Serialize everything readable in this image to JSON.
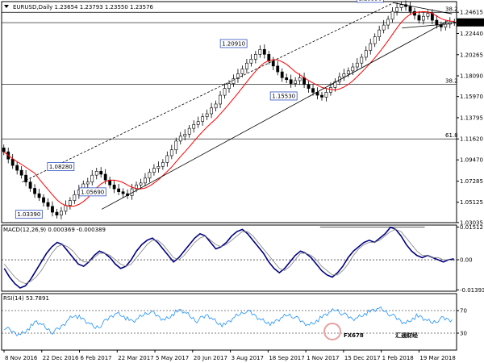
{
  "header": {
    "symbol_line": "EURUSD,Daily  1.23654 1.23793 1.23550 1.23576"
  },
  "chart_data": [
    {
      "type": "candlestick",
      "panel": "price",
      "ylim": [
        1.0303,
        1.2488
      ],
      "yticks": [
        "1.24615",
        "1.22440",
        "1.20265",
        "1.18090",
        "1.15970",
        "1.13795",
        "1.11620",
        "1.09470",
        "1.07285",
        "1.05125",
        "1.03035"
      ],
      "current_price": {
        "label": "1.23576",
        "value": 1.23576,
        "color": "#000000"
      },
      "horizontal_levels": [
        {
          "value": 1.2461,
          "label": "38.2",
          "color": "#000000"
        },
        {
          "value": 1.2355,
          "label": "",
          "color": "#000000"
        },
        {
          "value": 1.1722,
          "label": "38.2",
          "color": "#000000"
        },
        {
          "value": 1.1162,
          "label": "61.8",
          "color": "#000000"
        }
      ],
      "annotations": [
        {
          "label": "1.25550",
          "x": 0.81,
          "y": 1.2555
        },
        {
          "label": "1.20910",
          "x": 0.51,
          "y": 1.2091
        },
        {
          "label": "1.15530",
          "x": 0.62,
          "y": 1.1553
        },
        {
          "label": "1.08280",
          "x": 0.13,
          "y": 1.0828
        },
        {
          "label": "1.05690",
          "x": 0.2,
          "y": 1.0569
        },
        {
          "label": "1.03390",
          "x": 0.06,
          "y": 1.0339
        }
      ],
      "close": [
        1.103,
        1.0955,
        1.089,
        1.084,
        1.079,
        1.072,
        1.0655,
        1.06,
        1.056,
        1.051,
        1.047,
        1.041,
        1.038,
        1.042,
        1.048,
        1.053,
        1.059,
        1.064,
        1.07,
        1.072,
        1.079,
        1.083,
        1.08,
        1.074,
        1.069,
        1.065,
        1.062,
        1.06,
        1.058,
        1.065,
        1.069,
        1.071,
        1.076,
        1.082,
        1.086,
        1.088,
        1.092,
        1.099,
        1.105,
        1.114,
        1.119,
        1.121,
        1.127,
        1.131,
        1.134,
        1.139,
        1.142,
        1.148,
        1.152,
        1.161,
        1.168,
        1.173,
        1.178,
        1.183,
        1.188,
        1.194,
        1.198,
        1.203,
        1.208,
        1.203,
        1.196,
        1.191,
        1.185,
        1.179,
        1.177,
        1.173,
        1.176,
        1.179,
        1.172,
        1.168,
        1.164,
        1.161,
        1.159,
        1.164,
        1.169,
        1.175,
        1.18,
        1.183,
        1.186,
        1.19,
        1.194,
        1.2,
        1.207,
        1.214,
        1.221,
        1.228,
        1.233,
        1.239,
        1.247,
        1.251,
        1.254,
        1.252,
        1.247,
        1.243,
        1.238,
        1.242,
        1.245,
        1.238,
        1.233,
        1.231,
        1.234,
        1.236,
        1.2358
      ],
      "trendlines": [
        {
          "from": [
            0.045,
            1.072
          ],
          "to": [
            0.86,
            1.2555
          ],
          "style": "dashed"
        },
        {
          "from": [
            0.22,
            1.044
          ],
          "to": [
            0.98,
            1.237
          ],
          "style": "solid"
        },
        {
          "from": [
            0.86,
            1.256
          ],
          "to": [
            0.99,
            1.2445
          ],
          "style": "solid"
        },
        {
          "from": [
            0.88,
            1.23
          ],
          "to": [
            0.99,
            1.2345
          ],
          "style": "solid"
        }
      ],
      "ma_color": "#ff0000",
      "candle_color": "#000000"
    },
    {
      "type": "line",
      "panel": "macd",
      "title": "MACD(12,26,9) 0.000369 -0.000389",
      "yticks": [
        "0.01512",
        "0.00",
        "-0.01393"
      ],
      "ylim": [
        -0.0145,
        0.016
      ],
      "series": [
        {
          "name": "MACD",
          "color": "#000080",
          "values": [
            -0.004,
            -0.008,
            -0.011,
            -0.013,
            -0.012,
            -0.009,
            -0.005,
            -0.001,
            0.003,
            0.006,
            0.008,
            0.007,
            0.004,
            0.001,
            -0.002,
            -0.003,
            -0.001,
            0.002,
            0.004,
            0.003,
            0.001,
            -0.002,
            -0.004,
            -0.003,
            0.0,
            0.004,
            0.007,
            0.009,
            0.01,
            0.008,
            0.005,
            0.002,
            -0.001,
            0.001,
            0.004,
            0.007,
            0.01,
            0.012,
            0.011,
            0.008,
            0.005,
            0.006,
            0.008,
            0.011,
            0.013,
            0.014,
            0.012,
            0.009,
            0.006,
            0.003,
            -0.001,
            -0.004,
            -0.006,
            -0.004,
            -0.001,
            0.002,
            0.004,
            0.003,
            0.001,
            -0.002,
            -0.005,
            -0.007,
            -0.008,
            -0.006,
            -0.003,
            0.001,
            0.004,
            0.006,
            0.008,
            0.009,
            0.008,
            0.01,
            0.012,
            0.015,
            0.014,
            0.011,
            0.007,
            0.004,
            0.002,
            0.001,
            0.002,
            0.001,
            0.0,
            -0.001,
            0.0,
            0.0004
          ]
        },
        {
          "name": "Signal",
          "color": "#808080",
          "values": [
            -0.002,
            -0.005,
            -0.008,
            -0.01,
            -0.011,
            -0.01,
            -0.008,
            -0.005,
            -0.001,
            0.003,
            0.006,
            0.007,
            0.006,
            0.004,
            0.001,
            -0.001,
            -0.001,
            0.001,
            0.003,
            0.003,
            0.002,
            0.0,
            -0.002,
            -0.003,
            -0.002,
            0.001,
            0.004,
            0.007,
            0.009,
            0.009,
            0.007,
            0.004,
            0.001,
            0.0,
            0.002,
            0.005,
            0.008,
            0.01,
            0.011,
            0.009,
            0.007,
            0.006,
            0.007,
            0.009,
            0.011,
            0.013,
            0.013,
            0.011,
            0.008,
            0.005,
            0.002,
            -0.001,
            -0.004,
            -0.005,
            -0.003,
            0.0,
            0.003,
            0.003,
            0.002,
            0.0,
            -0.003,
            -0.005,
            -0.007,
            -0.007,
            -0.005,
            -0.002,
            0.002,
            0.005,
            0.007,
            0.008,
            0.008,
            0.009,
            0.011,
            0.013,
            0.014,
            0.013,
            0.01,
            0.007,
            0.004,
            0.002,
            0.002,
            0.001,
            0.001,
            0.0,
            0.0,
            -0.0004
          ]
        }
      ],
      "signal_level_line": 0.0151
    },
    {
      "type": "line",
      "panel": "rsi",
      "title": "RSI(14) 53.7891",
      "yticks": [
        "70",
        "30"
      ],
      "ylim": [
        0,
        100
      ],
      "series": [
        {
          "name": "RSI",
          "color": "#1e90ff",
          "values": [
            40,
            35,
            30,
            28,
            34,
            42,
            50,
            45,
            38,
            32,
            36,
            44,
            55,
            62,
            58,
            52,
            46,
            40,
            44,
            52,
            60,
            66,
            62,
            55,
            50,
            56,
            63,
            68,
            64,
            58,
            54,
            60,
            67,
            70,
            65,
            58,
            52,
            57,
            62,
            55,
            48,
            44,
            50,
            58,
            64,
            69,
            66,
            60,
            54,
            50,
            46,
            52,
            58,
            63,
            60,
            54,
            48,
            45,
            50,
            56,
            62,
            68,
            72,
            66,
            60,
            55,
            58,
            63,
            67,
            70,
            74,
            70,
            64,
            58,
            52,
            48,
            54,
            60,
            57,
            52,
            49,
            53,
            56,
            54,
            53.8
          ]
        }
      ]
    }
  ],
  "x_axis": {
    "labels": [
      "8 Nov 2016",
      "22 Dec 2016",
      "6 Feb 2017",
      "22 Mar 2017",
      "5 May 2017",
      "20 Jun 2017",
      "3 Aug 2017",
      "18 Sep 2017",
      "1 Nov 2017",
      "15 Dec 2017",
      "1 Feb 2018",
      "19 Mar 2018"
    ]
  },
  "watermark": {
    "text": "FX678",
    "subtext": "汇通财经",
    "color": "#e8a0a0"
  }
}
